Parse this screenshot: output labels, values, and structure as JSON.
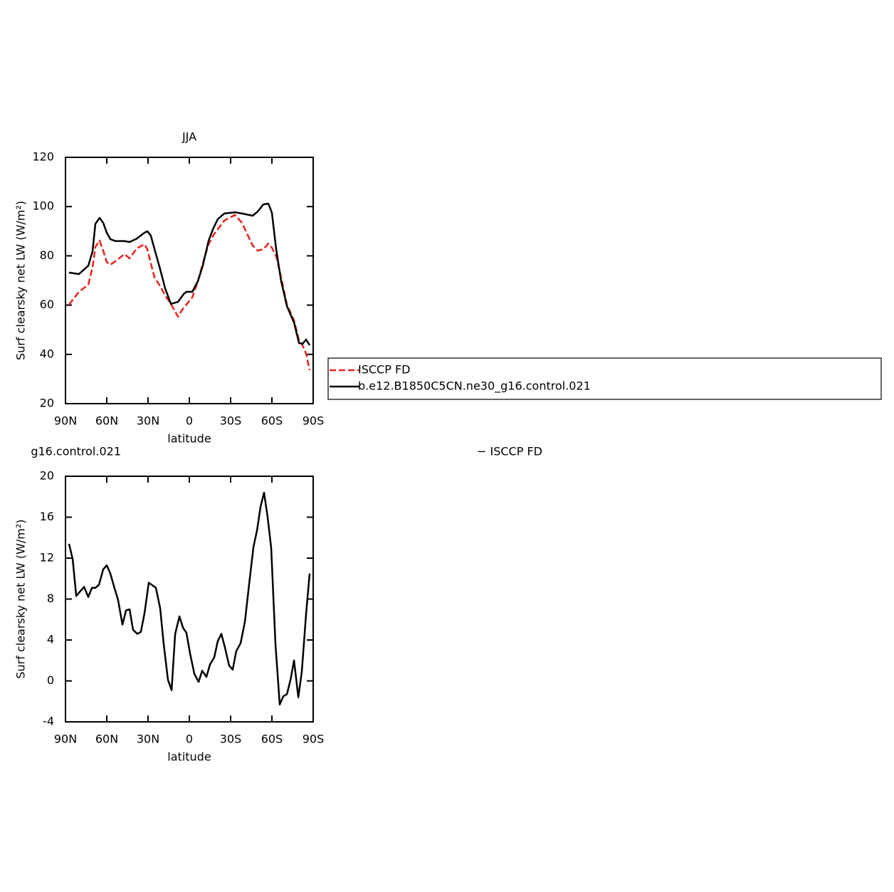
{
  "chart_data": [
    {
      "type": "line",
      "title": "JJA",
      "xlabel": "latitude",
      "ylabel": "Surf clearsky net LW (W/m²)",
      "xlim": [
        90,
        -90
      ],
      "xticks": [
        {
          "value": 90,
          "label": "90N"
        },
        {
          "value": 60,
          "label": "60N"
        },
        {
          "value": 30,
          "label": "30N"
        },
        0,
        {
          "value": -30,
          "label": "30S"
        },
        {
          "value": -60,
          "label": "60S"
        },
        {
          "value": -90,
          "label": "90S"
        }
      ],
      "ylim": [
        20,
        120
      ],
      "yticks": [
        20,
        40,
        60,
        80,
        100,
        120
      ],
      "legend": "right",
      "x": [
        87.4,
        80.2,
        73.4,
        70.3,
        68.3,
        65.2,
        62.6,
        60.0,
        57.4,
        53.8,
        47.1,
        43.4,
        38.3,
        32.6,
        30.5,
        28.0,
        25.3,
        21.2,
        17.6,
        13.4,
        8.3,
        4.1,
        2.1,
        -2.1,
        -6.2,
        -9.8,
        -14.0,
        -17.6,
        -20.7,
        -25.4,
        -33.1,
        -38.3,
        -46.0,
        -49.7,
        -53.8,
        -57.4,
        -60.0,
        -63.1,
        -66.7,
        -70.9,
        -76.1,
        -79.7,
        -82.3,
        -84.9,
        -87.4
      ],
      "series": [
        {
          "name": "ISCCP FD",
          "color": "#e8231c",
          "style": "dashed",
          "values": [
            60.2,
            65.4,
            68.3,
            75.5,
            83.6,
            86.2,
            82.1,
            77.5,
            76.4,
            77.8,
            80.7,
            79.0,
            83.0,
            84.7,
            82.7,
            76.9,
            71.2,
            67.7,
            63.9,
            60.5,
            55.3,
            59.0,
            60.2,
            63.1,
            69.7,
            76.9,
            84.7,
            88.5,
            90.8,
            94.3,
            96.6,
            93.4,
            84.2,
            82.1,
            82.7,
            85.0,
            83.3,
            79.8,
            71.2,
            60.2,
            53.8,
            45.7,
            43.7,
            40.2,
            33.6
          ]
        },
        {
          "name": "b.e12.B1850C5CN.ne30_g16.control.021",
          "color": "#000000",
          "style": "solid",
          "values": [
            73.2,
            72.6,
            76.0,
            82.0,
            93.0,
            95.4,
            93.4,
            89.4,
            86.8,
            86.0,
            86.0,
            85.6,
            87.0,
            89.4,
            90.0,
            88.2,
            82.7,
            74.6,
            66.8,
            60.5,
            61.3,
            64.5,
            65.4,
            65.4,
            69.7,
            76.0,
            86.2,
            91.4,
            94.9,
            97.2,
            97.7,
            97.2,
            96.3,
            98.0,
            100.9,
            101.2,
            97.5,
            82.7,
            69.7,
            59.6,
            52.9,
            44.6,
            44.3,
            46.0,
            43.7
          ]
        }
      ]
    },
    {
      "type": "line",
      "title_parts": [
        "g16.control.021",
        "− ISCCP FD"
      ],
      "xlabel": "latitude",
      "ylabel": "Surf clearsky net LW (W/m²)",
      "xlim": [
        90,
        -90
      ],
      "xticks": [
        {
          "value": 90,
          "label": "90N"
        },
        {
          "value": 60,
          "label": "60N"
        },
        {
          "value": 30,
          "label": "30N"
        },
        0,
        {
          "value": -30,
          "label": "30S"
        },
        {
          "value": -60,
          "label": "60S"
        },
        {
          "value": -90,
          "label": "90S"
        }
      ],
      "ylim": [
        -4,
        20
      ],
      "yticks": [
        -4,
        0,
        4,
        8,
        12,
        16,
        20
      ],
      "x": [
        87.4,
        84.8,
        82.2,
        76.5,
        73.4,
        70.8,
        68.3,
        65.7,
        62.6,
        60.0,
        57.4,
        54.9,
        51.8,
        48.6,
        46.0,
        43.4,
        40.9,
        37.8,
        35.2,
        32.6,
        29.5,
        24.3,
        21.2,
        18.6,
        15.5,
        12.9,
        10.3,
        7.2,
        4.6,
        2.1,
        -0.5,
        -3.6,
        -6.7,
        -9.3,
        -12.4,
        -15.0,
        -18.1,
        -20.7,
        -23.3,
        -25.8,
        -28.9,
        -31.5,
        -34.1,
        -37.3,
        -40.4,
        -43.5,
        -46.6,
        -49.2,
        -51.7,
        -54.3,
        -56.9,
        -59.5,
        -62.6,
        -65.7,
        -68.3,
        -70.9,
        -73.5,
        -76.1,
        -79.2,
        -81.7,
        -84.9,
        -87.4
      ],
      "series": [
        {
          "color": "#000000",
          "style": "solid",
          "values": [
            13.4,
            11.9,
            8.3,
            9.2,
            8.2,
            9.1,
            9.1,
            9.4,
            10.9,
            11.3,
            10.5,
            9.3,
            7.9,
            5.5,
            6.9,
            7.0,
            5.0,
            4.6,
            4.8,
            6.6,
            9.6,
            9.1,
            7.1,
            3.6,
            0.1,
            -0.9,
            4.6,
            6.3,
            5.2,
            4.7,
            2.7,
            0.7,
            -0.1,
            1.0,
            0.4,
            1.6,
            2.3,
            3.9,
            4.6,
            3.3,
            1.5,
            1.1,
            2.9,
            3.7,
            5.8,
            9.5,
            13.1,
            14.7,
            17.0,
            18.4,
            16.0,
            13.0,
            3.6,
            -2.3,
            -1.5,
            -1.3,
            0.1,
            2.0,
            -1.6,
            0.9,
            6.6,
            10.5
          ]
        }
      ]
    }
  ]
}
